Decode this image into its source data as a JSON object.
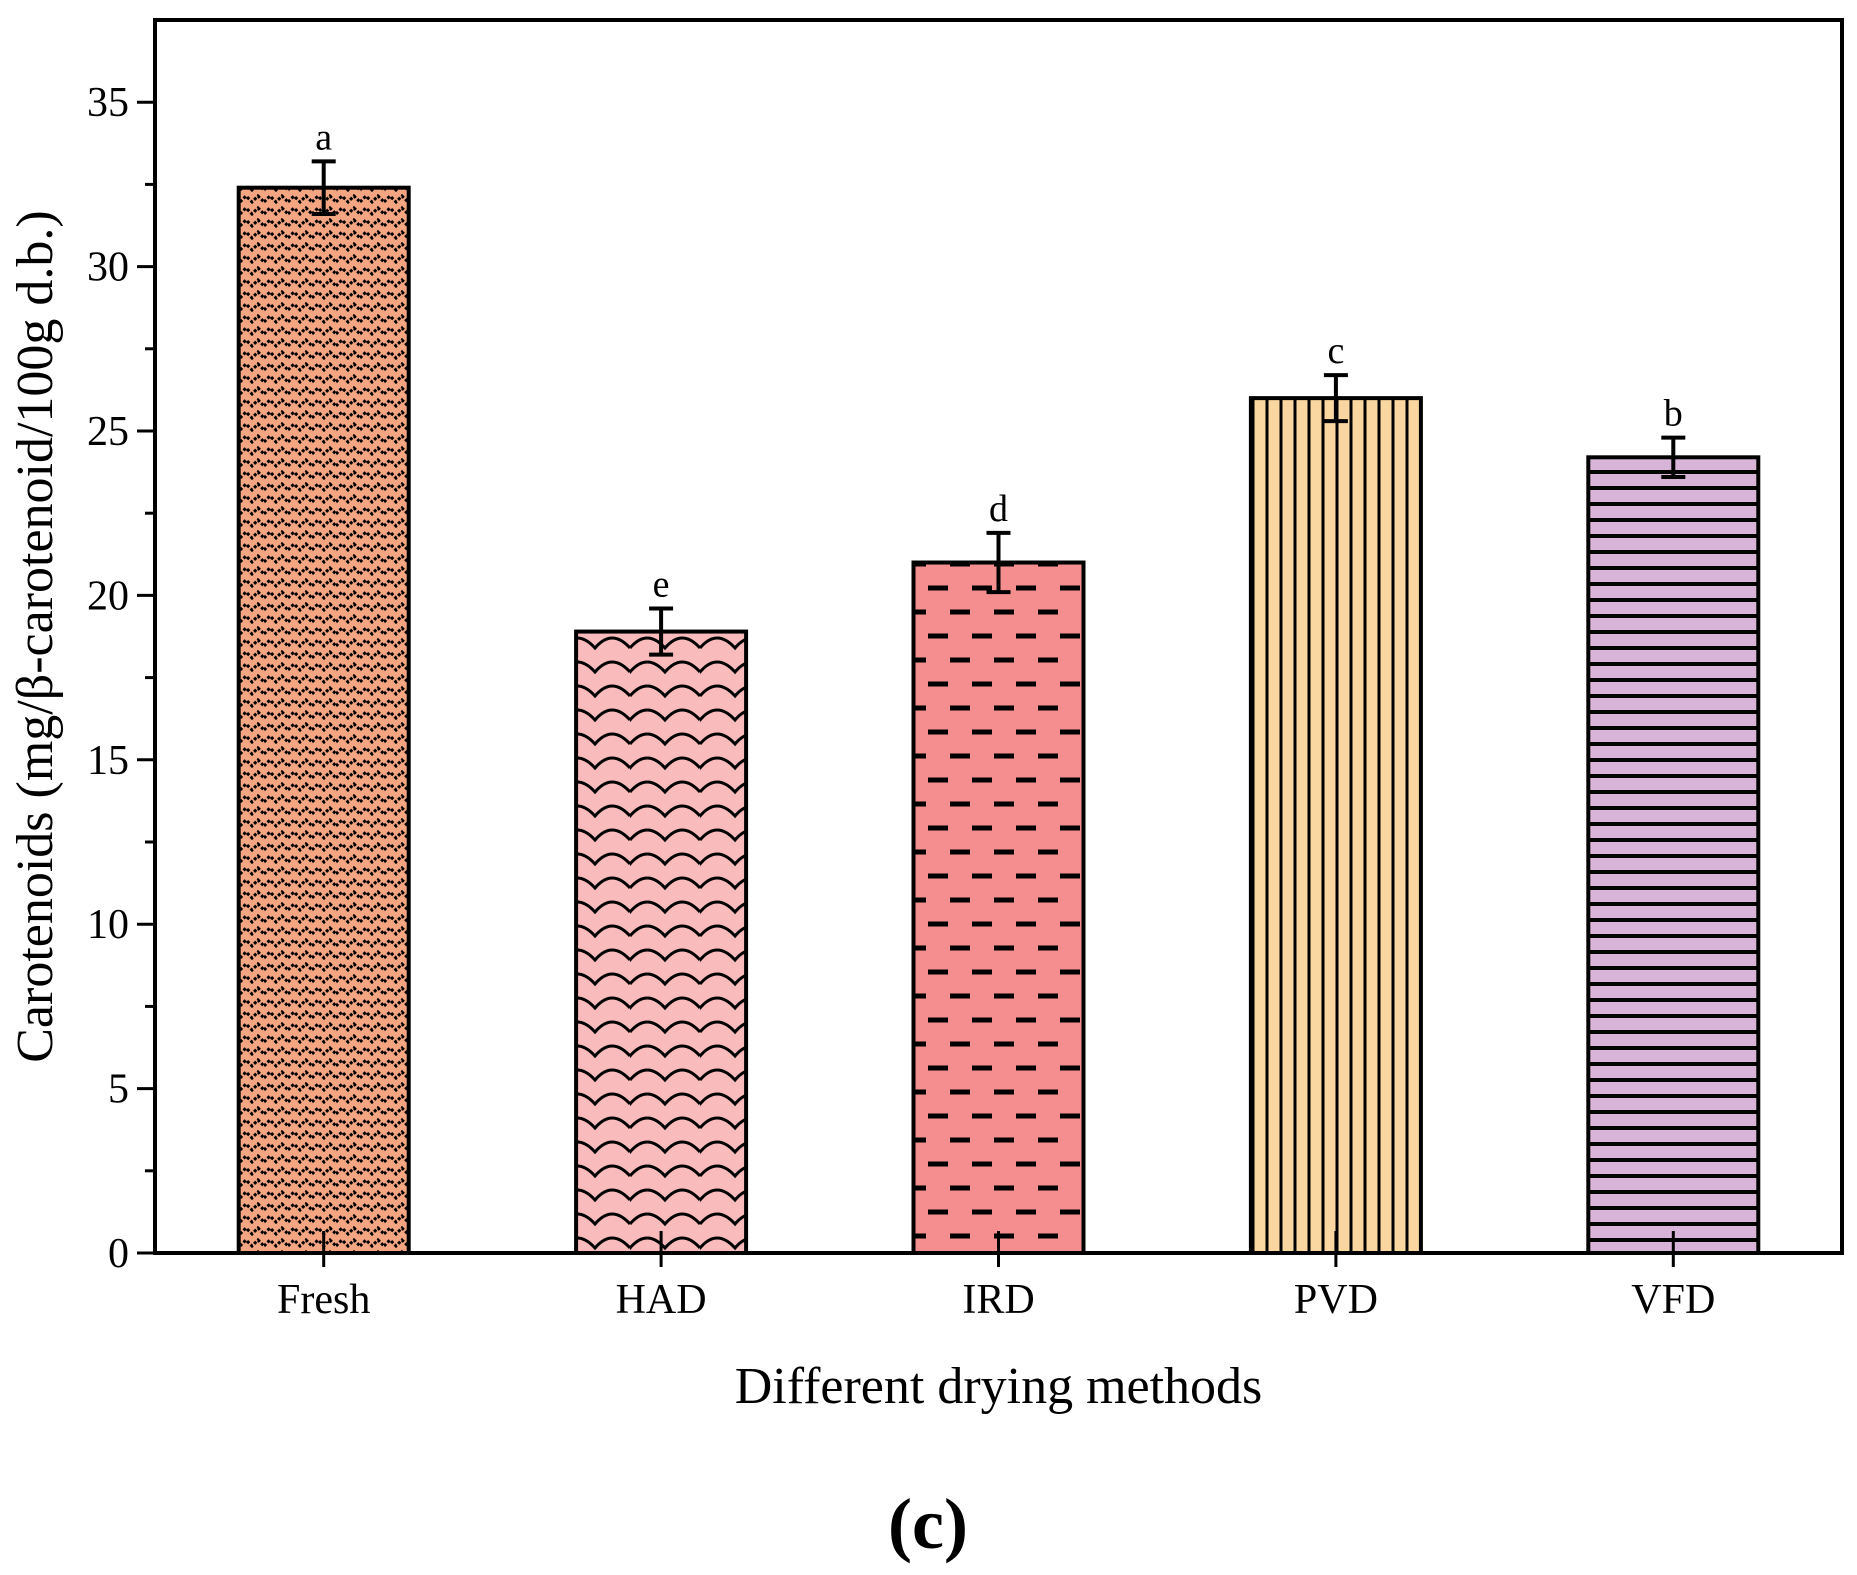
{
  "panel_label": "(c)",
  "chart_data": {
    "type": "bar",
    "title": "",
    "xlabel": "Different drying methods",
    "ylabel": "Carotenoids (mg/β-carotenoid/100g d.b.)",
    "ylim": [
      0,
      37.5
    ],
    "yticks": [
      0,
      5,
      10,
      15,
      20,
      25,
      30,
      35
    ],
    "grid": false,
    "categories": [
      "Fresh",
      "HAD",
      "IRD",
      "PVD",
      "VFD"
    ],
    "values": [
      32.4,
      18.9,
      21.0,
      26.0,
      24.2
    ],
    "errors": [
      0.8,
      0.7,
      0.9,
      0.7,
      0.6
    ],
    "significance": [
      "a",
      "e",
      "d",
      "c",
      "b"
    ],
    "colors": [
      "#F4A582",
      "#F9BBBB",
      "#F58F8F",
      "#FAD7A0",
      "#D8B4D8"
    ],
    "patterns": [
      "zigzag",
      "scales",
      "dashes",
      "vertical-lines",
      "horizontal-lines"
    ]
  }
}
